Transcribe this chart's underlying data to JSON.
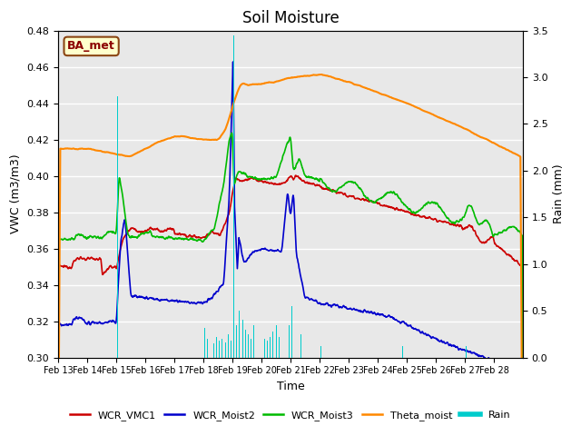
{
  "title": "Soil Moisture",
  "xlabel": "Time",
  "ylabel_left": "VWC (m3/m3)",
  "ylabel_right": "Rain (mm)",
  "ylim_left": [
    0.3,
    0.48
  ],
  "ylim_right": [
    0.0,
    3.5
  ],
  "background_color": "#ffffff",
  "plot_bg_color": "#e8e8e8",
  "grid_color": "#ffffff",
  "label_box_text": "BA_met",
  "label_box_facecolor": "#ffffcc",
  "label_box_edgecolor": "#8B4513",
  "label_box_textcolor": "#8B0000",
  "series_colors": {
    "WCR_VMC1": "#cc0000",
    "WCR_Moist2": "#0000cc",
    "WCR_Moist3": "#00bb00",
    "Theta_moist": "#ff8800",
    "Rain": "#00cccc"
  },
  "x_tick_labels": [
    "Feb 13",
    "Feb 14",
    "Feb 15",
    "Feb 16",
    "Feb 17",
    "Feb 18",
    "Feb 19",
    "Feb 20",
    "Feb 21",
    "Feb 22",
    "Feb 23",
    "Feb 24",
    "Feb 25",
    "Feb 26",
    "Feb 27",
    "Feb 28"
  ],
  "n_points": 1500,
  "days": 16
}
